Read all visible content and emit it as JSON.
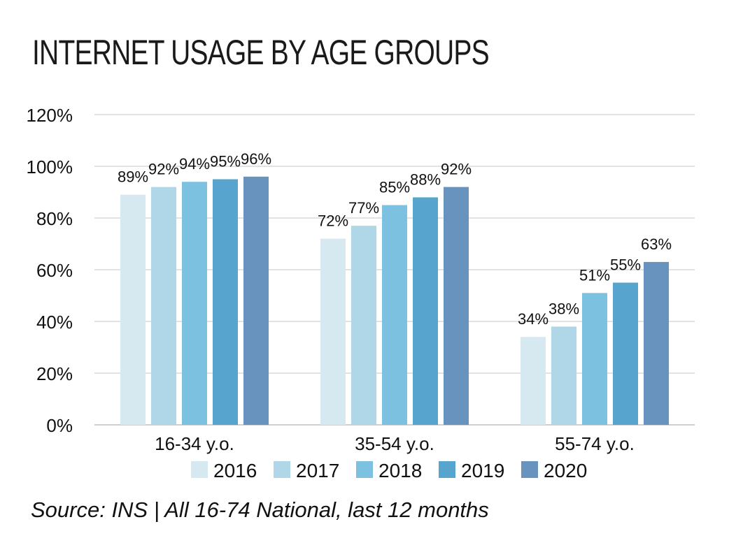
{
  "title": "INTERNET USAGE BY AGE GROUPS",
  "source": "Source: INS | All 16-74 National, last 12 months",
  "chart_data": {
    "type": "bar",
    "title": "INTERNET USAGE BY AGE GROUPS",
    "categories": [
      "16-34 y.o.",
      "35-54 y.o.",
      "55-74 y.o."
    ],
    "series": [
      {
        "name": "2016",
        "color": "#d6e9f1",
        "values": [
          89,
          72,
          34
        ]
      },
      {
        "name": "2017",
        "color": "#b0d7e8",
        "values": [
          92,
          77,
          38
        ]
      },
      {
        "name": "2018",
        "color": "#7cc2e0",
        "values": [
          94,
          85,
          51
        ]
      },
      {
        "name": "2019",
        "color": "#57a5cf",
        "values": [
          95,
          88,
          55
        ]
      },
      {
        "name": "2020",
        "color": "#6893be",
        "values": [
          96,
          92,
          63
        ]
      }
    ],
    "ylim": [
      0,
      120
    ],
    "yticks": [
      0,
      20,
      40,
      60,
      80,
      100,
      120
    ],
    "ytick_labels": [
      "0%",
      "20%",
      "40%",
      "60%",
      "80%",
      "100%",
      "120%"
    ],
    "value_suffix": "%",
    "grid": true,
    "legend": "bottom",
    "xlabel": "",
    "ylabel": ""
  }
}
